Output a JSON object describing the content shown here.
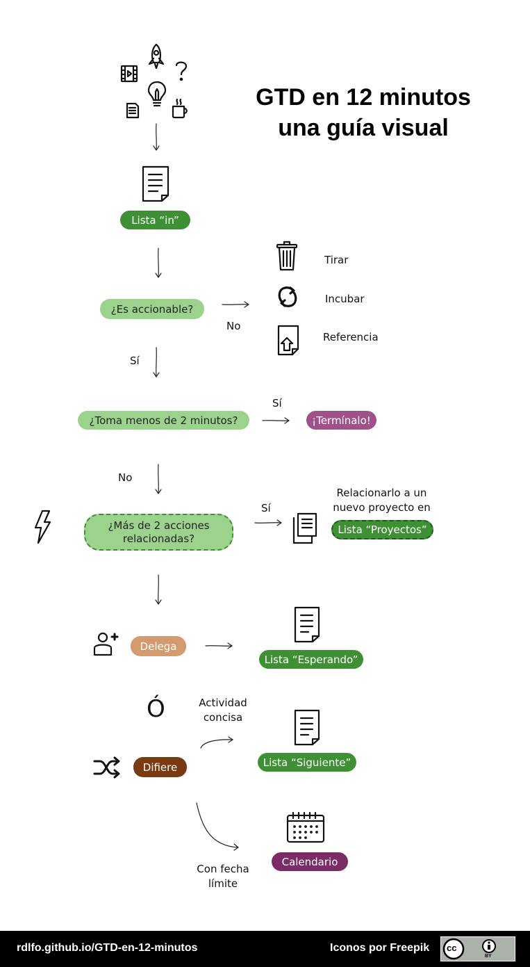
{
  "title": {
    "line1": "GTD en 12 minutos",
    "line2": "una guía visual"
  },
  "nodes": {
    "inbox": "Lista “in”",
    "actionable": "¿Es accionable?",
    "two_minutes": "¿Toma menos de 2 minutos?",
    "done": "¡Termínalo!",
    "multi_actions_line1": "¿Más de 2 acciones",
    "multi_actions_line2": "relacionadas?",
    "projects": "Lista “Proyectos”",
    "delegate": "Delega",
    "waiting": "Lista “Esperando”",
    "defer": "Difiere",
    "next": "Lista “Siguiente”",
    "calendar": "Calendario"
  },
  "labels": {
    "no_1": "No",
    "si_1": "Sí",
    "si_2": "Sí",
    "no_2": "No",
    "si_3": "Sí",
    "trash": "Tirar",
    "incubate": "Incubar",
    "reference": "Referencia",
    "project_note_line1": "Relacionarlo a un",
    "project_note_line2": "nuevo proyecto en",
    "or": "Ó",
    "concise_line1": "Actividad",
    "concise_line2": "concisa",
    "deadline_line1": "Con fecha",
    "deadline_line2": "límite"
  },
  "icons": [
    "film-icon",
    "rocket-icon",
    "question-icon",
    "lightbulb-icon",
    "document-icon",
    "coffee-icon",
    "inbox-document-icon",
    "trash-icon",
    "recycle-icon",
    "reference-file-icon",
    "lightning-icon",
    "stacked-documents-icon",
    "add-user-icon",
    "waiting-document-icon",
    "shuffle-icon",
    "next-document-icon",
    "calendar-icon",
    "cc-icon",
    "by-icon"
  ],
  "footer": {
    "url": "rdlfo.github.io/GTD-en-12-minutos",
    "credit": "Iconos por Freepik",
    "license_cc": "cc",
    "license_by": "BY"
  },
  "colors": {
    "dark_green": "#3f8f35",
    "light_green": "#9bd38d",
    "purple": "#a0508a",
    "tan": "#d49a70",
    "brown": "#7a3a12",
    "plum": "#7b2c66"
  }
}
